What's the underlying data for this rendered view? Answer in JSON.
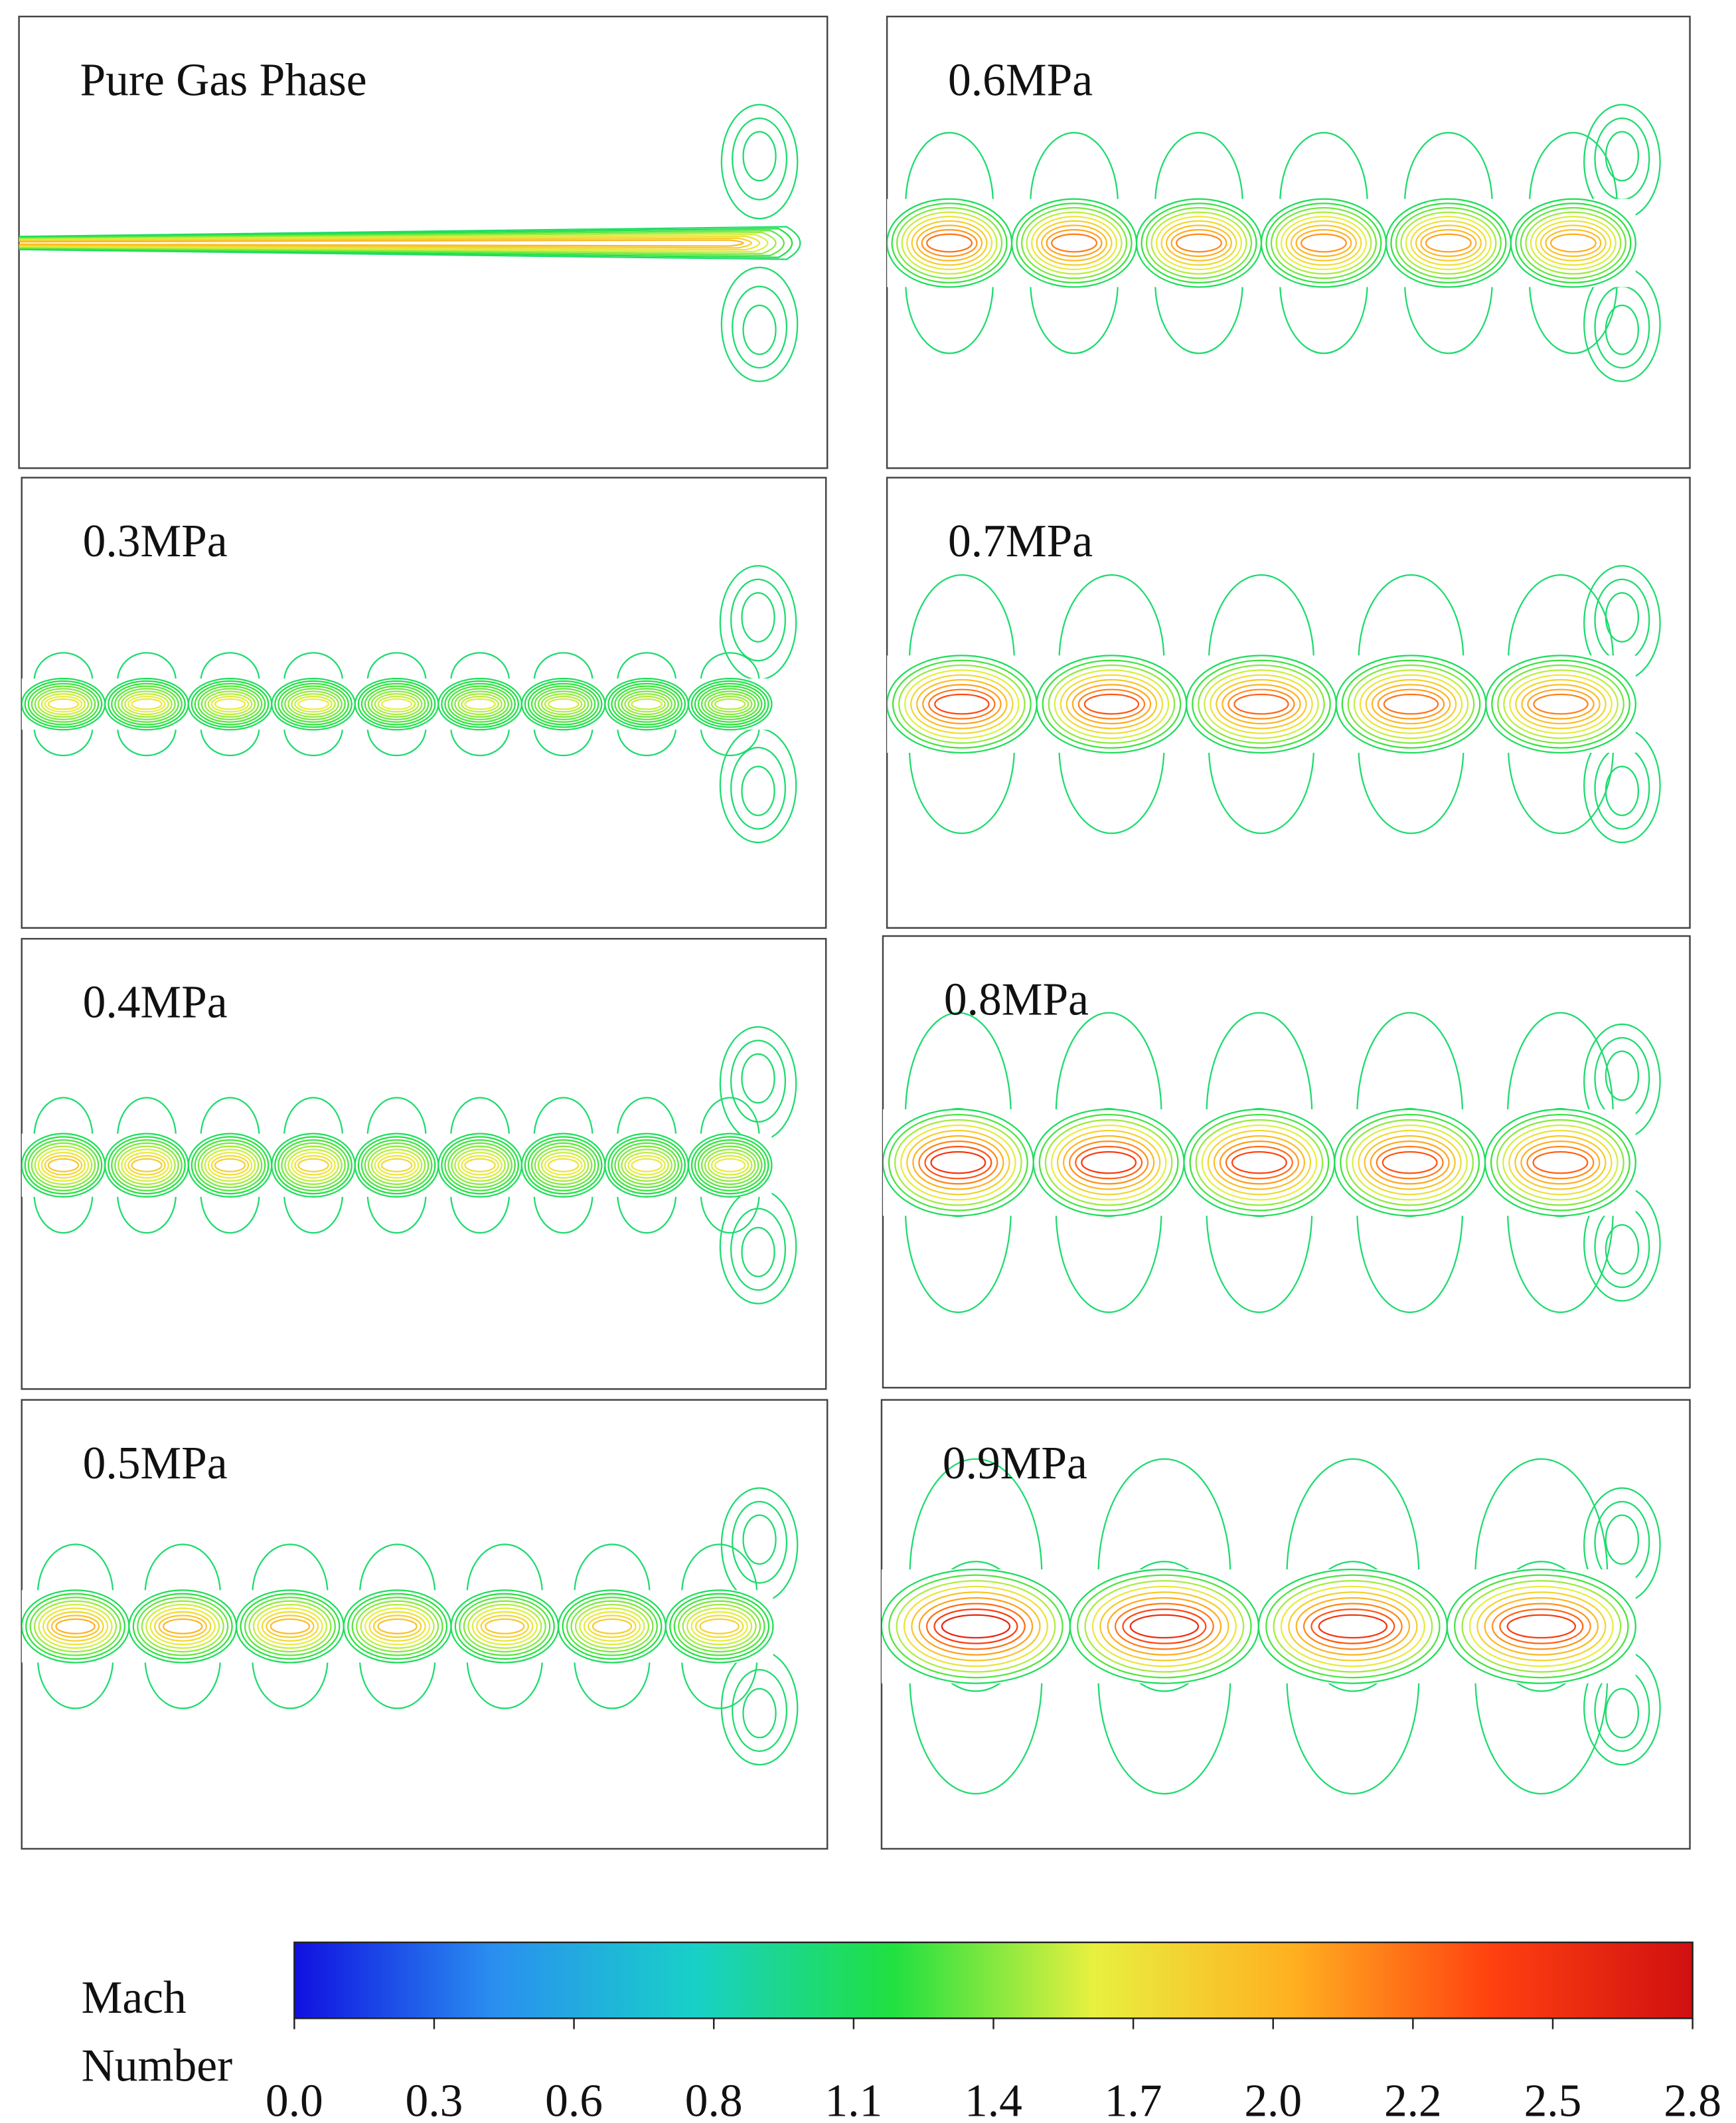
{
  "panels": [
    {
      "label": "Pure Gas Phase"
    },
    {
      "label": "0.3MPa"
    },
    {
      "label": "0.4MPa"
    },
    {
      "label": "0.5MPa"
    },
    {
      "label": "0.6MPa"
    },
    {
      "label": "0.7MPa"
    },
    {
      "label": "0.8MPa"
    },
    {
      "label": "0.9MPa"
    }
  ],
  "colorbar": {
    "label_line1": "Mach",
    "label_line2": "Number",
    "lim": [
      0,
      2.8
    ],
    "colors": [
      "#1010e0",
      "#2a8ff0",
      "#18d0c8",
      "#20e040",
      "#e8f040",
      "#ffb020",
      "#ff4010",
      "#d01010"
    ],
    "ticks": [
      {
        "value": 0,
        "label": "0.0"
      },
      {
        "value": 0.28,
        "label": "0.3"
      },
      {
        "value": 0.56,
        "label": "0.6"
      },
      {
        "value": 0.84,
        "label": "0.8"
      },
      {
        "value": 1.12,
        "label": "1.1"
      },
      {
        "value": 1.4,
        "label": "1.4"
      },
      {
        "value": 1.68,
        "label": "1.7"
      },
      {
        "value": 1.96,
        "label": "2.0"
      },
      {
        "value": 2.24,
        "label": "2.2"
      },
      {
        "value": 2.52,
        "label": "2.5"
      },
      {
        "value": 2.8,
        "label": "2.8"
      }
    ]
  }
}
